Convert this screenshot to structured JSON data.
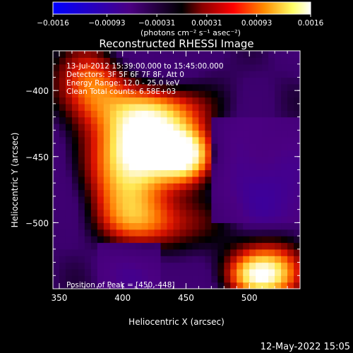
{
  "chart_data": {
    "type": "heatmap",
    "title": "Reconstructed RHESSI Image",
    "xlabel": "Heliocentric X (arcsec)",
    "ylabel": "Heliocentric Y (arcsec)",
    "xlim": [
      345,
      540
    ],
    "ylim": [
      -550,
      -370
    ],
    "x_ticks": [
      350,
      400,
      450,
      500
    ],
    "y_ticks": [
      -400,
      -450,
      -500
    ],
    "x_tick_labels": [
      "350",
      "400",
      "450",
      "500"
    ],
    "y_tick_labels": [
      "−400",
      "−450",
      "−500"
    ],
    "colorbar": {
      "range": [
        -0.0016,
        0.0016
      ],
      "ticks": [
        -0.0016,
        -0.00093,
        -0.00031,
        0.00031,
        0.00093,
        0.0016
      ],
      "tick_labels": [
        "−0.0016",
        "−0.00093",
        "−0.00031",
        "0.00031",
        "0.00093",
        "0.0016"
      ],
      "units": "(photons cm⁻² s⁻¹ asec⁻²)",
      "colors": [
        "#0000ff",
        "#4b0082",
        "#000000",
        "#8b0000",
        "#ff0000",
        "#ff8c00",
        "#ffff66",
        "#ffffff"
      ]
    },
    "annotations": [
      "13-Jul-2012 15:39:00.000 to 15:45:00.000",
      "Detectors: 3F 5F 6F 7F 8F, Att 0",
      "Energy Range: 12.0 - 25.0 keV",
      "Clean    Total counts: 6.58E+03"
    ],
    "peak_label": "Position of Peak = [450,-448]",
    "peak": [
      450,
      -448
    ],
    "sources": [
      {
        "x": 450,
        "y": -448,
        "amp": 1.0,
        "sx": 16,
        "sy": 14
      },
      {
        "x": 415,
        "y": -440,
        "amp": 0.75,
        "sx": 20,
        "sy": 18
      },
      {
        "x": 430,
        "y": -415,
        "amp": 0.55,
        "sx": 28,
        "sy": 14
      },
      {
        "x": 400,
        "y": -470,
        "amp": 0.5,
        "sx": 22,
        "sy": 24
      },
      {
        "x": 375,
        "y": -395,
        "amp": 0.45,
        "sx": 18,
        "sy": 20
      },
      {
        "x": 420,
        "y": -500,
        "amp": 0.35,
        "sx": 28,
        "sy": 14
      },
      {
        "x": 520,
        "y": -535,
        "amp": 0.5,
        "sx": 22,
        "sy": 16
      },
      {
        "x": 505,
        "y": -540,
        "amp": 0.35,
        "sx": 16,
        "sy": 10
      }
    ]
  },
  "footer": {
    "date": "12-May-2022 15:05"
  }
}
